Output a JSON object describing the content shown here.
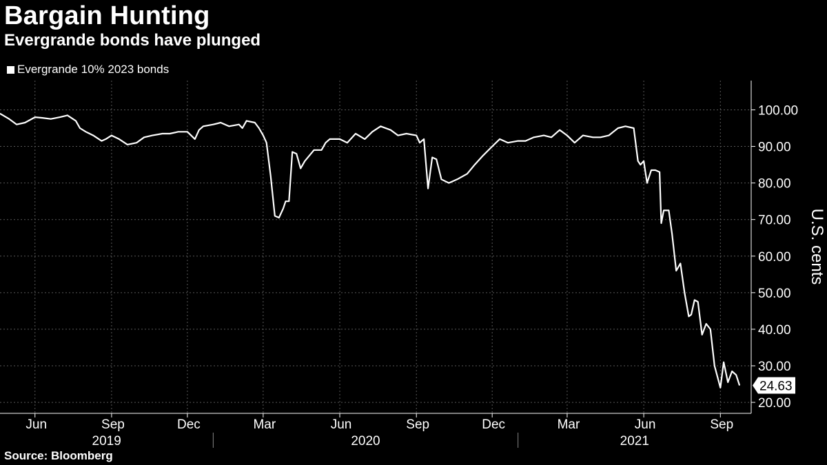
{
  "chart_data": {
    "type": "line",
    "title": "Bargain Hunting",
    "subtitle": "Evergrande bonds have plunged",
    "ylabel": "U.S. cents",
    "source": "Source: Bloomberg",
    "ylim": [
      17,
      108
    ],
    "y_ticks": [
      "100.00",
      "90.00",
      "80.00",
      "70.00",
      "60.00",
      "50.00",
      "40.00",
      "30.00",
      "20.00"
    ],
    "x_month_ticks": [
      "Jun",
      "Sep",
      "Dec",
      "Mar",
      "Jun",
      "Sep",
      "Dec",
      "Mar",
      "Jun",
      "Sep"
    ],
    "x_year_labels": [
      "2019",
      "2020",
      "2021"
    ],
    "legend_position": "top-left",
    "grid": true,
    "last_value_label": "24.63",
    "colors": {
      "background": "#000000",
      "line": "#ffffff",
      "grid": "#5a5a5a"
    },
    "series": [
      {
        "name": "Evergrande 10% 2023 bonds",
        "x": [
          "2019-04-20",
          "2019-05-01",
          "2019-05-10",
          "2019-05-20",
          "2019-06-01",
          "2019-06-10",
          "2019-06-20",
          "2019-07-01",
          "2019-07-10",
          "2019-07-20",
          "2019-07-25",
          "2019-08-01",
          "2019-08-10",
          "2019-08-20",
          "2019-08-25",
          "2019-09-01",
          "2019-09-10",
          "2019-09-20",
          "2019-10-01",
          "2019-10-10",
          "2019-10-20",
          "2019-11-01",
          "2019-11-10",
          "2019-11-20",
          "2019-12-01",
          "2019-12-10",
          "2019-12-15",
          "2019-12-20",
          "2020-01-01",
          "2020-01-10",
          "2020-01-20",
          "2020-02-01",
          "2020-02-05",
          "2020-02-10",
          "2020-02-20",
          "2020-02-25",
          "2020-03-01",
          "2020-03-05",
          "2020-03-10",
          "2020-03-15",
          "2020-03-20",
          "2020-03-25",
          "2020-03-28",
          "2020-04-01",
          "2020-04-05",
          "2020-04-10",
          "2020-04-15",
          "2020-04-20",
          "2020-05-01",
          "2020-05-10",
          "2020-05-15",
          "2020-05-20",
          "2020-06-01",
          "2020-06-10",
          "2020-06-20",
          "2020-07-01",
          "2020-07-10",
          "2020-07-20",
          "2020-08-01",
          "2020-08-10",
          "2020-08-20",
          "2020-09-01",
          "2020-09-05",
          "2020-09-10",
          "2020-09-15",
          "2020-09-20",
          "2020-09-25",
          "2020-10-01",
          "2020-10-10",
          "2020-10-20",
          "2020-11-01",
          "2020-11-10",
          "2020-11-20",
          "2020-12-01",
          "2020-12-10",
          "2020-12-20",
          "2021-01-01",
          "2021-01-10",
          "2021-01-20",
          "2021-02-01",
          "2021-02-10",
          "2021-02-20",
          "2021-03-01",
          "2021-03-10",
          "2021-03-20",
          "2021-04-01",
          "2021-04-10",
          "2021-04-20",
          "2021-05-01",
          "2021-05-10",
          "2021-05-20",
          "2021-05-25",
          "2021-05-28",
          "2021-06-01",
          "2021-06-05",
          "2021-06-10",
          "2021-06-15",
          "2021-06-20",
          "2021-06-22",
          "2021-06-25",
          "2021-07-01",
          "2021-07-05",
          "2021-07-10",
          "2021-07-15",
          "2021-07-20",
          "2021-07-25",
          "2021-07-28",
          "2021-08-01",
          "2021-08-05",
          "2021-08-10",
          "2021-08-15",
          "2021-08-20",
          "2021-08-25",
          "2021-09-01",
          "2021-09-05",
          "2021-09-10",
          "2021-09-15",
          "2021-09-20",
          "2021-09-24"
        ],
        "values": [
          99,
          97.5,
          96,
          96.5,
          98,
          97.8,
          97.5,
          98,
          98.5,
          97,
          95,
          94,
          93,
          91.5,
          92,
          93,
          92,
          90.5,
          91,
          92.5,
          93,
          93.5,
          93.5,
          94,
          94,
          92,
          94.5,
          95.5,
          96,
          96.5,
          95.5,
          96,
          95,
          97,
          96.5,
          95,
          93,
          91,
          82,
          71,
          70.5,
          73,
          75,
          75,
          88.5,
          88,
          84,
          86,
          89,
          89,
          91,
          92,
          92,
          91,
          93.5,
          92,
          94,
          95.5,
          94.5,
          93,
          93.5,
          93,
          91,
          92,
          78.5,
          87,
          86.5,
          81,
          80,
          81,
          82.5,
          85,
          87.5,
          90,
          92,
          91,
          91.5,
          91.5,
          92.5,
          93,
          92.5,
          94.5,
          93,
          91,
          93,
          92.5,
          92.5,
          93,
          95,
          95.5,
          95,
          86,
          85,
          86,
          80,
          83.5,
          83.5,
          83,
          69,
          72.5,
          72.5,
          66,
          56,
          58,
          50,
          43.5,
          44,
          48,
          47.5,
          38.5,
          41.5,
          40,
          30,
          24,
          31,
          25.5,
          28.5,
          27.5,
          24.63
        ]
      }
    ]
  }
}
